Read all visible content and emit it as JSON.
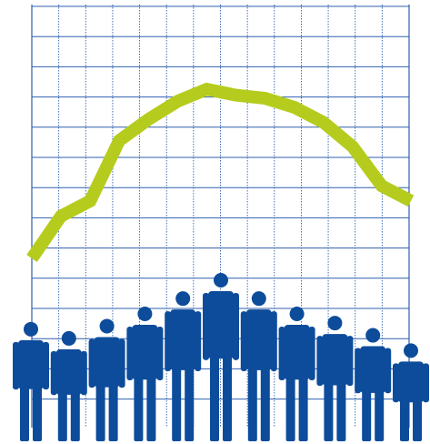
{
  "chart_data": {
    "type": "line",
    "title": "",
    "xlabel": "",
    "ylabel": "",
    "grid": true,
    "x": [
      1,
      2,
      3,
      4,
      5,
      6,
      7,
      8,
      9,
      10,
      11,
      12,
      13,
      14
    ],
    "xlim": [
      1,
      14
    ],
    "ylim": [
      0,
      14
    ],
    "series": [
      {
        "values": [
          5.6,
          7.0,
          7.5,
          9.5,
          10.2,
          10.8,
          11.2,
          11.0,
          10.9,
          10.6,
          10.1,
          9.3,
          8.0,
          7.5
        ],
        "color": "#b5cc1e"
      }
    ],
    "figures": {
      "count": 11,
      "heights": [
        3.9,
        3.6,
        4.0,
        4.4,
        4.9,
        5.5,
        4.9,
        4.4,
        4.1,
        3.7,
        3.2
      ],
      "color": "#0d4c9b"
    },
    "grid_color": "#2f5fae"
  }
}
